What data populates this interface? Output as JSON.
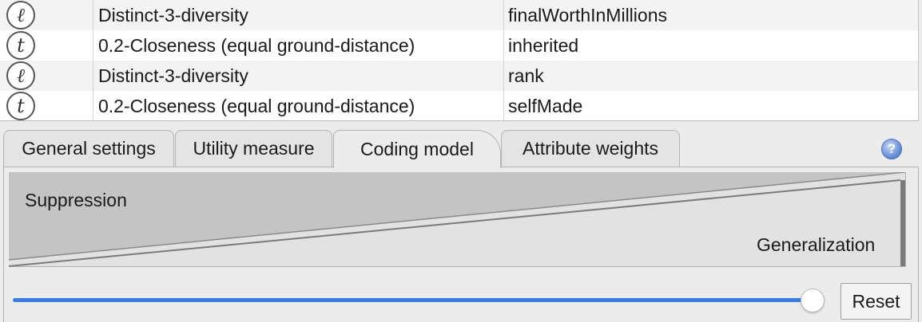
{
  "table": {
    "rows": [
      {
        "glyph": "ℓ",
        "icon": "l-diversity-icon",
        "criterion": "Distinct-3-diversity",
        "attribute": "finalWorthInMillions"
      },
      {
        "glyph": "t",
        "icon": "t-closeness-icon",
        "criterion": "0.2-Closeness (equal ground-distance)",
        "attribute": "inherited"
      },
      {
        "glyph": "ℓ",
        "icon": "l-diversity-icon",
        "criterion": "Distinct-3-diversity",
        "attribute": "rank"
      },
      {
        "glyph": "t",
        "icon": "t-closeness-icon",
        "criterion": "0.2-Closeness (equal ground-distance)",
        "attribute": "selfMade"
      }
    ]
  },
  "tabs": {
    "general": "General settings",
    "utility": "Utility measure",
    "coding": "Coding model",
    "weights": "Attribute weights",
    "active": "coding"
  },
  "help": {
    "icon": "help-icon",
    "glyph": "?"
  },
  "coding_model": {
    "suppression_label": "Suppression",
    "generalization_label": "Generalization",
    "slider_value": 1.0
  },
  "reset_label": "Reset",
  "colors": {
    "accent": "#3b7be8",
    "triangle_fill": "#c4c4c4",
    "triangle_dark": "#7a7a7a"
  }
}
